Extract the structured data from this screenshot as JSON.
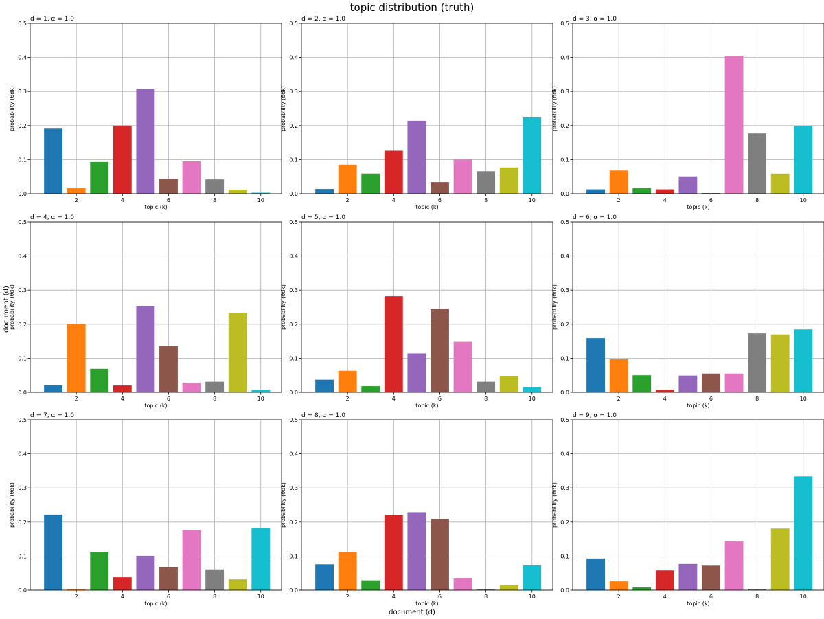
{
  "figure": {
    "title": "topic distribution (truth)",
    "xlabel": "document (d)",
    "ylabel": "document (d)"
  },
  "colors": [
    "#1f77b4",
    "#ff7f0e",
    "#2ca02c",
    "#d62728",
    "#9467bd",
    "#8c564b",
    "#e377c2",
    "#7f7f7f",
    "#bcbd22",
    "#17becf"
  ],
  "chart_data": [
    {
      "type": "bar",
      "title": "d = 1, α = 1.0",
      "xlabel": "topic (k)",
      "ylabel": "probability (θdk)",
      "x": [
        1,
        2,
        3,
        4,
        5,
        6,
        7,
        8,
        9,
        10
      ],
      "values": [
        0.191,
        0.016,
        0.093,
        0.2,
        0.307,
        0.044,
        0.095,
        0.042,
        0.012,
        0.003
      ],
      "xticks": [
        2,
        4,
        6,
        8,
        10
      ],
      "yticks": [
        "0.0",
        "0.1",
        "0.2",
        "0.3",
        "0.4",
        "0.5"
      ],
      "ylim": [
        0,
        0.5
      ],
      "grid": true
    },
    {
      "type": "bar",
      "title": "d = 2, α = 1.0",
      "xlabel": "topic (k)",
      "ylabel": "probability (θdk)",
      "x": [
        1,
        2,
        3,
        4,
        5,
        6,
        7,
        8,
        9,
        10
      ],
      "values": [
        0.014,
        0.085,
        0.059,
        0.126,
        0.214,
        0.034,
        0.1,
        0.066,
        0.077,
        0.224
      ],
      "xticks": [
        2,
        4,
        6,
        8,
        10
      ],
      "yticks": [
        "0.0",
        "0.1",
        "0.2",
        "0.3",
        "0.4",
        "0.5"
      ],
      "ylim": [
        0,
        0.5
      ],
      "grid": true
    },
    {
      "type": "bar",
      "title": "d = 3, α = 1.0",
      "xlabel": "topic (k)",
      "ylabel": "probability (θdk)",
      "x": [
        1,
        2,
        3,
        4,
        5,
        6,
        7,
        8,
        9,
        10
      ],
      "values": [
        0.013,
        0.068,
        0.016,
        0.013,
        0.051,
        0.002,
        0.405,
        0.177,
        0.059,
        0.199
      ],
      "xticks": [
        2,
        4,
        6,
        8,
        10
      ],
      "yticks": [
        "0.0",
        "0.1",
        "0.2",
        "0.3",
        "0.4",
        "0.5"
      ],
      "ylim": [
        0,
        0.5
      ],
      "grid": true
    },
    {
      "type": "bar",
      "title": "d = 4, α = 1.0",
      "xlabel": "topic (k)",
      "ylabel": "probability (θdk)",
      "x": [
        1,
        2,
        3,
        4,
        5,
        6,
        7,
        8,
        9,
        10
      ],
      "values": [
        0.021,
        0.2,
        0.069,
        0.02,
        0.252,
        0.135,
        0.028,
        0.031,
        0.233,
        0.008
      ],
      "xticks": [
        2,
        4,
        6,
        8,
        10
      ],
      "yticks": [
        "0.0",
        "0.1",
        "0.2",
        "0.3",
        "0.4",
        "0.5"
      ],
      "ylim": [
        0,
        0.5
      ],
      "grid": true
    },
    {
      "type": "bar",
      "title": "d = 5, α = 1.0",
      "xlabel": "topic (k)",
      "ylabel": "probability (θdk)",
      "x": [
        1,
        2,
        3,
        4,
        5,
        6,
        7,
        8,
        9,
        10
      ],
      "values": [
        0.037,
        0.063,
        0.018,
        0.282,
        0.114,
        0.244,
        0.148,
        0.031,
        0.048,
        0.015
      ],
      "xticks": [
        2,
        4,
        6,
        8,
        10
      ],
      "yticks": [
        "0.0",
        "0.1",
        "0.2",
        "0.3",
        "0.4",
        "0.5"
      ],
      "ylim": [
        0,
        0.5
      ],
      "grid": true
    },
    {
      "type": "bar",
      "title": "d = 6, α = 1.0",
      "xlabel": "topic (k)",
      "ylabel": "probability (θdk)",
      "x": [
        1,
        2,
        3,
        4,
        5,
        6,
        7,
        8,
        9,
        10
      ],
      "values": [
        0.159,
        0.097,
        0.05,
        0.008,
        0.049,
        0.055,
        0.055,
        0.173,
        0.17,
        0.185
      ],
      "xticks": [
        2,
        4,
        6,
        8,
        10
      ],
      "yticks": [
        "0.0",
        "0.1",
        "0.2",
        "0.3",
        "0.4",
        "0.5"
      ],
      "ylim": [
        0,
        0.5
      ],
      "grid": true
    },
    {
      "type": "bar",
      "title": "d = 7, α = 1.0",
      "xlabel": "topic (k)",
      "ylabel": "probability (θdk)",
      "x": [
        1,
        2,
        3,
        4,
        5,
        6,
        7,
        8,
        9,
        10
      ],
      "values": [
        0.222,
        0.003,
        0.111,
        0.038,
        0.101,
        0.068,
        0.176,
        0.061,
        0.032,
        0.183
      ],
      "xticks": [
        2,
        4,
        6,
        8,
        10
      ],
      "yticks": [
        "0.0",
        "0.1",
        "0.2",
        "0.3",
        "0.4",
        "0.5"
      ],
      "ylim": [
        0,
        0.5
      ],
      "grid": true
    },
    {
      "type": "bar",
      "title": "d = 8, α = 1.0",
      "xlabel": "topic (k)",
      "ylabel": "probability (θdk)",
      "x": [
        1,
        2,
        3,
        4,
        5,
        6,
        7,
        8,
        9,
        10
      ],
      "values": [
        0.076,
        0.113,
        0.029,
        0.22,
        0.229,
        0.209,
        0.035,
        0.002,
        0.014,
        0.073
      ],
      "xticks": [
        2,
        4,
        6,
        8,
        10
      ],
      "yticks": [
        "0.0",
        "0.1",
        "0.2",
        "0.3",
        "0.4",
        "0.5"
      ],
      "ylim": [
        0,
        0.5
      ],
      "grid": true
    },
    {
      "type": "bar",
      "title": "d = 9, α = 1.0",
      "xlabel": "topic (k)",
      "ylabel": "probability (θdk)",
      "x": [
        1,
        2,
        3,
        4,
        5,
        6,
        7,
        8,
        9,
        10
      ],
      "values": [
        0.093,
        0.026,
        0.008,
        0.058,
        0.077,
        0.072,
        0.143,
        0.004,
        0.181,
        0.334
      ],
      "xticks": [
        2,
        4,
        6,
        8,
        10
      ],
      "yticks": [
        "0.0",
        "0.1",
        "0.2",
        "0.3",
        "0.4",
        "0.5"
      ],
      "ylim": [
        0,
        0.5
      ],
      "grid": true
    }
  ]
}
